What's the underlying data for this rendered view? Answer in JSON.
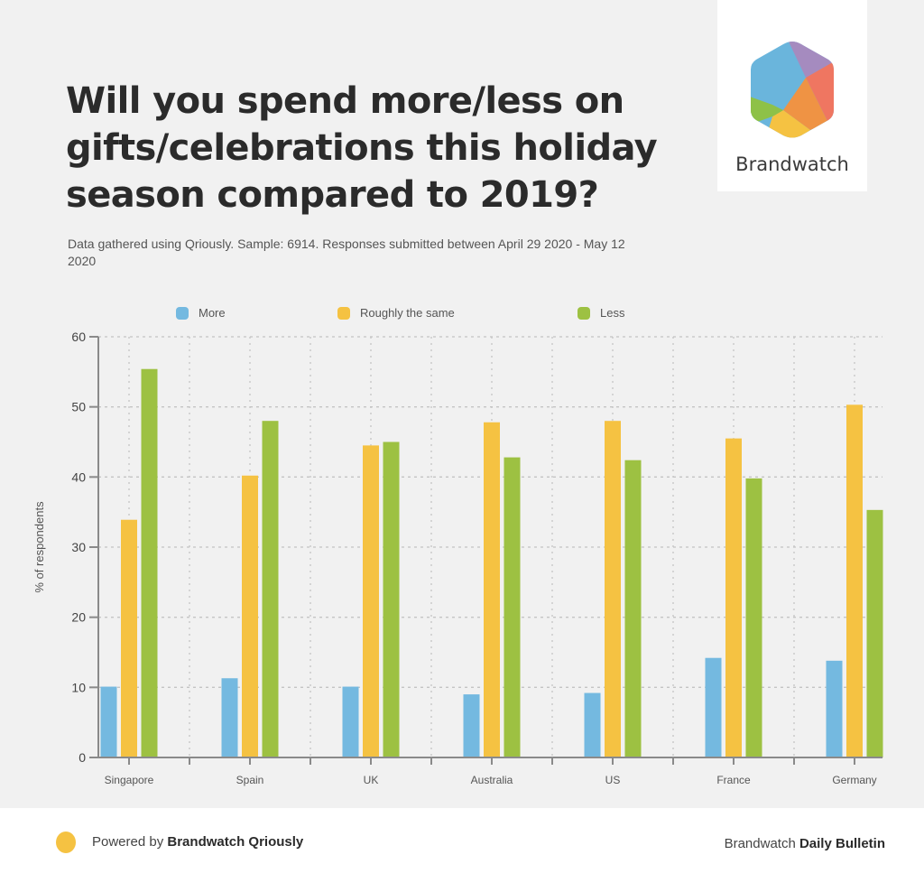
{
  "title": "Will you spend more/less on gifts/celebrations this holiday season compared to 2019?",
  "subtitle": "Data gathered using Qriously. Sample: 6914. Responses submitted between April 29 2020 - May 12 2020",
  "logo": {
    "text": "Brandwatch",
    "icon": "brandwatch-hexagon-logo"
  },
  "footer": {
    "left_prefix": "Powered by ",
    "left_bold": "Brandwatch Qriously",
    "right_prefix": "Brandwatch ",
    "right_bold": "Daily Bulletin",
    "dot_color": "#f5c242"
  },
  "chart_data": {
    "type": "bar",
    "title": "Will you spend more/less on gifts/celebrations this holiday season compared to 2019?",
    "xlabel": "",
    "ylabel": "% of respondents",
    "ylim": [
      0,
      60
    ],
    "yticks": [
      0,
      10,
      20,
      30,
      40,
      50,
      60
    ],
    "grid": true,
    "legend_position": "top",
    "categories": [
      "Singapore",
      "Spain",
      "UK",
      "Australia",
      "US",
      "France",
      "Germany"
    ],
    "series": [
      {
        "name": "More",
        "color": "#74b9e0",
        "values": [
          10.1,
          11.3,
          10.1,
          9.0,
          9.2,
          14.2,
          13.8
        ]
      },
      {
        "name": "Roughly the same",
        "color": "#f5c242",
        "values": [
          33.9,
          40.2,
          44.5,
          47.8,
          48.0,
          45.5,
          50.3
        ]
      },
      {
        "name": "Less",
        "color": "#9dc142",
        "values": [
          55.4,
          48.0,
          45.0,
          42.8,
          42.4,
          39.8,
          35.3
        ]
      }
    ]
  }
}
